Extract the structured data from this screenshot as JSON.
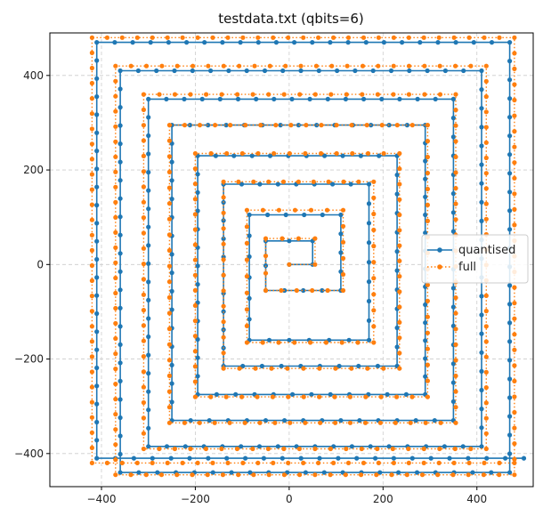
{
  "chart_data": {
    "type": "line",
    "title": "testdata.txt (qbits=6)",
    "xlabel": "",
    "ylabel": "",
    "xlim": [
      -510,
      520
    ],
    "ylim": [
      -470,
      490
    ],
    "xticks": [
      -400,
      -200,
      0,
      200,
      400
    ],
    "yticks": [
      -400,
      -200,
      0,
      200,
      400
    ],
    "grid": true,
    "legend_position": "center-right",
    "colors": {
      "quantised": "#1f77b4",
      "full": "#ff7f0e"
    },
    "series": [
      {
        "name": "quantised",
        "style": "solid line with circle markers",
        "x": [
          0,
          50,
          50,
          -50,
          -50,
          110,
          110,
          -85,
          -85,
          170,
          170,
          -140,
          -140,
          230,
          230,
          -195,
          -195,
          290,
          290,
          -250,
          -250,
          350,
          350,
          -300,
          -300,
          410,
          410,
          -360,
          -360,
          470,
          470,
          -410,
          -410,
          500
        ],
        "y": [
          0,
          0,
          50,
          50,
          -55,
          -55,
          105,
          105,
          -160,
          -160,
          170,
          170,
          -215,
          -215,
          230,
          230,
          -275,
          -275,
          295,
          295,
          -330,
          -330,
          350,
          350,
          -385,
          -385,
          410,
          410,
          -440,
          -440,
          470,
          470,
          -410,
          -410
        ]
      },
      {
        "name": "full",
        "style": "dotted line with circle markers",
        "x": [
          0,
          55,
          55,
          -50,
          -50,
          115,
          115,
          -90,
          -90,
          180,
          180,
          -140,
          -140,
          235,
          235,
          -200,
          -200,
          295,
          295,
          -255,
          -255,
          355,
          355,
          -310,
          -310,
          420,
          420,
          -370,
          -370,
          480,
          480,
          -420,
          -420,
          480
        ],
        "y": [
          0,
          0,
          55,
          55,
          -55,
          -55,
          115,
          115,
          -165,
          -165,
          175,
          175,
          -220,
          -220,
          235,
          235,
          -280,
          -280,
          295,
          295,
          -335,
          -335,
          360,
          360,
          -390,
          -390,
          420,
          420,
          -445,
          -445,
          480,
          480,
          -420,
          -420
        ]
      }
    ]
  }
}
